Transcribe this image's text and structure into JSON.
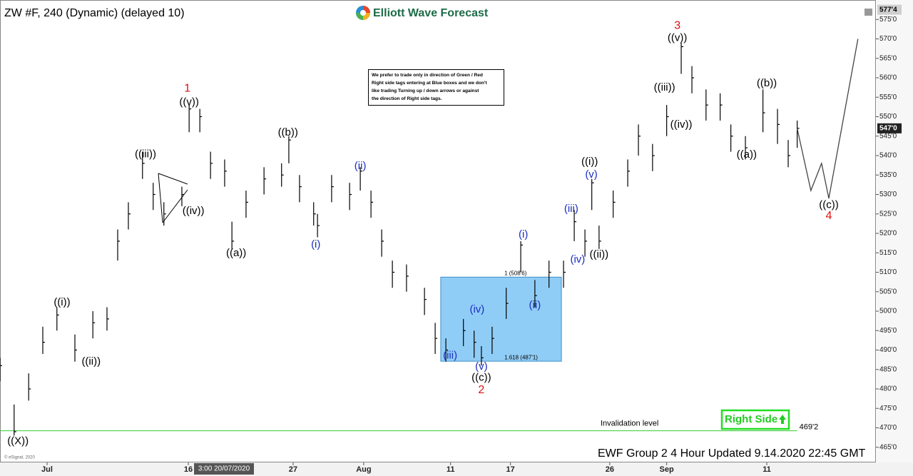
{
  "header": {
    "title": "ZW #F, 240 (Dynamic) (delayed 10)",
    "logo": "Elliott Wave Forecast",
    "footer": "EWF Group 2 4 Hour Updated 9.14.2020 22:45 GMT",
    "copyright": "© eSignal, 2020",
    "cursor_date": "3:00 20/07/2020"
  },
  "notice": [
    "We prefer to trade only in direction of Green / Red",
    "Right side tags entering at Blue boxes and we don't",
    "like trading Turning up / down arrows or against",
    "the direction of Right side tags."
  ],
  "chart_data": {
    "type": "ohlc",
    "color": "#000000",
    "x": [
      0,
      3.3,
      6.7,
      10,
      13.3,
      17.5,
      21.7,
      25,
      27.5,
      30,
      33.3,
      35.8,
      38.3,
      42.5,
      44.2,
      46.7,
      49.2,
      52.5,
      54.2,
      57.5,
      61.7,
      65.8,
      67.5,
      70,
      73.3,
      74.2,
      77.5,
      81.7,
      84.2,
      86.7,
      89.2,
      91.7,
      95,
      99.2,
      101.7,
      104.2,
      108.3,
      110.8,
      112.5,
      115,
      118.3,
      121.7,
      125,
      128.3,
      131.7,
      134.2,
      136.7,
      138.3,
      140,
      143.3,
      146.7,
      149.2,
      152.5,
      155.8,
      159.2,
      161.7,
      165,
      168.3,
      170.8,
      174.2,
      178.3,
      181.7,
      184.2,
      186.3
    ],
    "high": [
      488,
      476,
      484,
      496,
      501,
      494,
      500,
      501,
      521,
      528,
      541,
      533,
      528,
      532,
      553,
      552,
      541,
      539,
      523,
      531,
      537,
      538,
      545,
      535,
      528,
      525,
      535,
      533,
      537,
      531,
      521,
      513,
      512,
      506,
      497,
      493,
      498,
      495,
      491,
      496,
      506,
      518,
      508,
      513,
      513,
      526,
      521,
      534,
      522,
      531,
      539,
      548,
      543,
      553,
      569,
      563,
      557,
      556,
      548,
      545,
      557,
      552,
      544,
      549
    ],
    "low": [
      482,
      468,
      477,
      489,
      495,
      487,
      493,
      495,
      513,
      521,
      534,
      526,
      522,
      527,
      546,
      546,
      534,
      532,
      516,
      524,
      530,
      532,
      538,
      528,
      522,
      519,
      528,
      526,
      531,
      524,
      514,
      506,
      505,
      499,
      489,
      487,
      491,
      488,
      486,
      489,
      498,
      510,
      501,
      506,
      506,
      518,
      514,
      526,
      516,
      524,
      532,
      540,
      536,
      545,
      561,
      556,
      549,
      549,
      541,
      539,
      546,
      543,
      537,
      542
    ],
    "close": [
      486,
      469,
      480,
      492,
      499,
      490,
      497,
      498,
      518,
      525,
      538,
      530,
      525,
      530,
      552,
      550,
      538,
      536,
      518,
      528,
      534,
      535,
      544,
      532,
      525,
      522,
      532,
      530,
      536,
      528,
      518,
      510,
      509,
      503,
      493,
      490,
      495,
      492,
      488,
      493,
      502,
      517,
      504,
      510,
      510,
      523,
      518,
      533,
      518,
      528,
      536,
      545,
      540,
      550,
      568,
      560,
      553,
      553,
      545,
      542,
      551,
      548,
      540,
      547
    ],
    "xlim": [
      0,
      204.7
    ],
    "xticks": [
      {
        "value": 11,
        "label": "Jul"
      },
      {
        "value": 44,
        "label": "16"
      },
      {
        "value": 68.5,
        "label": "27"
      },
      {
        "value": 85,
        "label": "Aug"
      },
      {
        "value": 105.3,
        "label": "11"
      },
      {
        "value": 119.3,
        "label": "17"
      },
      {
        "value": 142.5,
        "label": "26"
      },
      {
        "value": 155.8,
        "label": "Sep"
      },
      {
        "value": 179.2,
        "label": "11"
      }
    ],
    "ylim": [
      461.1,
      580
    ],
    "yticks": [
      {
        "value": 465,
        "label": "465'0"
      },
      {
        "value": 470,
        "label": "470'0"
      },
      {
        "value": 475,
        "label": "475'0"
      },
      {
        "value": 480,
        "label": "480'0"
      },
      {
        "value": 485,
        "label": "485'0"
      },
      {
        "value": 490,
        "label": "490'0"
      },
      {
        "value": 495,
        "label": "495'0"
      },
      {
        "value": 500,
        "label": "500'0"
      },
      {
        "value": 505,
        "label": "505'0"
      },
      {
        "value": 510,
        "label": "510'0"
      },
      {
        "value": 515,
        "label": "515'0"
      },
      {
        "value": 520,
        "label": "520'0"
      },
      {
        "value": 525,
        "label": "525'0"
      },
      {
        "value": 530,
        "label": "530'0"
      },
      {
        "value": 535,
        "label": "535'0"
      },
      {
        "value": 540,
        "label": "540'0"
      },
      {
        "value": 545,
        "label": "545'0"
      },
      {
        "value": 550,
        "label": "550'0"
      },
      {
        "value": 555,
        "label": "555'0"
      },
      {
        "value": 560,
        "label": "560'0"
      },
      {
        "value": 565,
        "label": "565'0"
      },
      {
        "value": 570,
        "label": "570'0"
      },
      {
        "value": 575,
        "label": "575'0"
      }
    ],
    "projection": {
      "x": [
        186.3,
        189.5,
        192,
        193.7,
        200.5
      ],
      "values": [
        547,
        531,
        538,
        529,
        570
      ],
      "color": "#444444"
    },
    "zone": {
      "x": [
        103,
        131.2
      ],
      "y": [
        487.125,
        508.75
      ],
      "color": "#7cc4f5",
      "labels": [
        {
          "value": 508.75,
          "label": "1 (508'6)"
        },
        {
          "value": 487.125,
          "label": "1.618 (487'1)"
        }
      ]
    },
    "invalidation": {
      "value": 469.25,
      "label": "469'2",
      "text": "Invalidation level",
      "color": "#33cc33",
      "x_end": 186.3
    },
    "last_price": {
      "value": 547,
      "label": "547'0"
    },
    "top_price": {
      "value": 577.5,
      "label": "577'4"
    },
    "right_side": "Right Side",
    "annotations": [
      {
        "label": "((X))",
        "x": 4.2,
        "y": 466.5,
        "color": "#000000"
      },
      {
        "label": "((i))",
        "x": 14.5,
        "y": 502.2,
        "color": "#000000"
      },
      {
        "label": "((ii))",
        "x": 21.3,
        "y": 487,
        "color": "#000000"
      },
      {
        "label": "((iii))",
        "x": 34,
        "y": 540.3,
        "color": "#000000"
      },
      {
        "label": "((iv))",
        "x": 45.2,
        "y": 525.7,
        "color": "#000000"
      },
      {
        "label": "((v))",
        "x": 44.2,
        "y": 553.7,
        "color": "#000000"
      },
      {
        "label": "1",
        "x": 43.8,
        "y": 557.2,
        "color": "#dd1111"
      },
      {
        "label": "((a))",
        "x": 55.2,
        "y": 514.9,
        "color": "#000000"
      },
      {
        "label": "((b))",
        "x": 67.3,
        "y": 545.9,
        "color": "#000000"
      },
      {
        "label": "(i)",
        "x": 73.8,
        "y": 517.1,
        "color": "#1a2ebf"
      },
      {
        "label": "(ii)",
        "x": 84.2,
        "y": 537.2,
        "color": "#1a2ebf"
      },
      {
        "label": "(iii)",
        "x": 105.2,
        "y": 488.5,
        "color": "#1a2ebf"
      },
      {
        "label": "(iv)",
        "x": 111.5,
        "y": 500.4,
        "color": "#1a2ebf"
      },
      {
        "label": "(v)",
        "x": 112.5,
        "y": 485.7,
        "color": "#1a2ebf"
      },
      {
        "label": "((c))",
        "x": 112.5,
        "y": 482.8,
        "color": "#000000"
      },
      {
        "label": "2",
        "x": 112.5,
        "y": 479.7,
        "color": "#dd1111"
      },
      {
        "label": "(i)",
        "x": 122.3,
        "y": 519.6,
        "color": "#1a2ebf"
      },
      {
        "label": "(ii)",
        "x": 125,
        "y": 501.5,
        "color": "#1a2ebf"
      },
      {
        "label": "(iii)",
        "x": 133.5,
        "y": 526.2,
        "color": "#1a2ebf"
      },
      {
        "label": "(iv)",
        "x": 135,
        "y": 513.2,
        "color": "#1a2ebf"
      },
      {
        "label": "(v)",
        "x": 138.2,
        "y": 535,
        "color": "#1a2ebf"
      },
      {
        "label": "((i))",
        "x": 137.8,
        "y": 538.3,
        "color": "#000000"
      },
      {
        "label": "((ii))",
        "x": 140,
        "y": 514.5,
        "color": "#000000"
      },
      {
        "label": "((iii))",
        "x": 155.3,
        "y": 557.4,
        "color": "#000000"
      },
      {
        "label": "((iv))",
        "x": 159.2,
        "y": 547.9,
        "color": "#000000"
      },
      {
        "label": "((v))",
        "x": 158.3,
        "y": 570.2,
        "color": "#000000"
      },
      {
        "label": "3",
        "x": 158.3,
        "y": 573.3,
        "color": "#dd1111"
      },
      {
        "label": "((a))",
        "x": 174.5,
        "y": 540.2,
        "color": "#000000"
      },
      {
        "label": "((b))",
        "x": 179.2,
        "y": 558.5,
        "color": "#000000"
      },
      {
        "label": "((c))",
        "x": 193.7,
        "y": 527.2,
        "color": "#000000"
      },
      {
        "label": "4",
        "x": 193.7,
        "y": 524.4,
        "color": "#dd1111"
      }
    ]
  }
}
